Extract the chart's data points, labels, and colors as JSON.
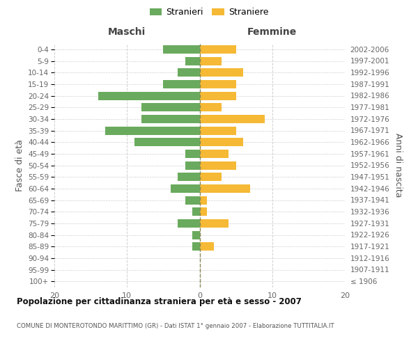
{
  "age_groups": [
    "100+",
    "95-99",
    "90-94",
    "85-89",
    "80-84",
    "75-79",
    "70-74",
    "65-69",
    "60-64",
    "55-59",
    "50-54",
    "45-49",
    "40-44",
    "35-39",
    "30-34",
    "25-29",
    "20-24",
    "15-19",
    "10-14",
    "5-9",
    "0-4"
  ],
  "birth_years": [
    "≤ 1906",
    "1907-1911",
    "1912-1916",
    "1917-1921",
    "1922-1926",
    "1927-1931",
    "1932-1936",
    "1937-1941",
    "1942-1946",
    "1947-1951",
    "1952-1956",
    "1957-1961",
    "1962-1966",
    "1967-1971",
    "1972-1976",
    "1977-1981",
    "1982-1986",
    "1987-1991",
    "1992-1996",
    "1997-2001",
    "2002-2006"
  ],
  "maschi": [
    0,
    0,
    0,
    1,
    1,
    3,
    1,
    2,
    4,
    3,
    2,
    2,
    9,
    13,
    8,
    8,
    14,
    5,
    3,
    2,
    5
  ],
  "femmine": [
    0,
    0,
    0,
    2,
    0,
    4,
    1,
    1,
    7,
    3,
    5,
    4,
    6,
    5,
    9,
    3,
    5,
    5,
    6,
    3,
    5
  ],
  "maschi_color": "#6aaa5e",
  "femmine_color": "#f5b935",
  "title": "Popolazione per cittadinanza straniera per età e sesso - 2007",
  "subtitle": "COMUNE DI MONTEROTONDO MARITTIMO (GR) - Dati ISTAT 1° gennaio 2007 - Elaborazione TUTTITALIA.IT",
  "ylabel_left": "Fasce di età",
  "ylabel_right": "Anni di nascita",
  "header_maschi": "Maschi",
  "header_femmine": "Femmine",
  "legend_maschi": "Stranieri",
  "legend_femmine": "Straniere",
  "xlim": 20,
  "background_color": "#ffffff",
  "grid_color": "#d0d0d0"
}
